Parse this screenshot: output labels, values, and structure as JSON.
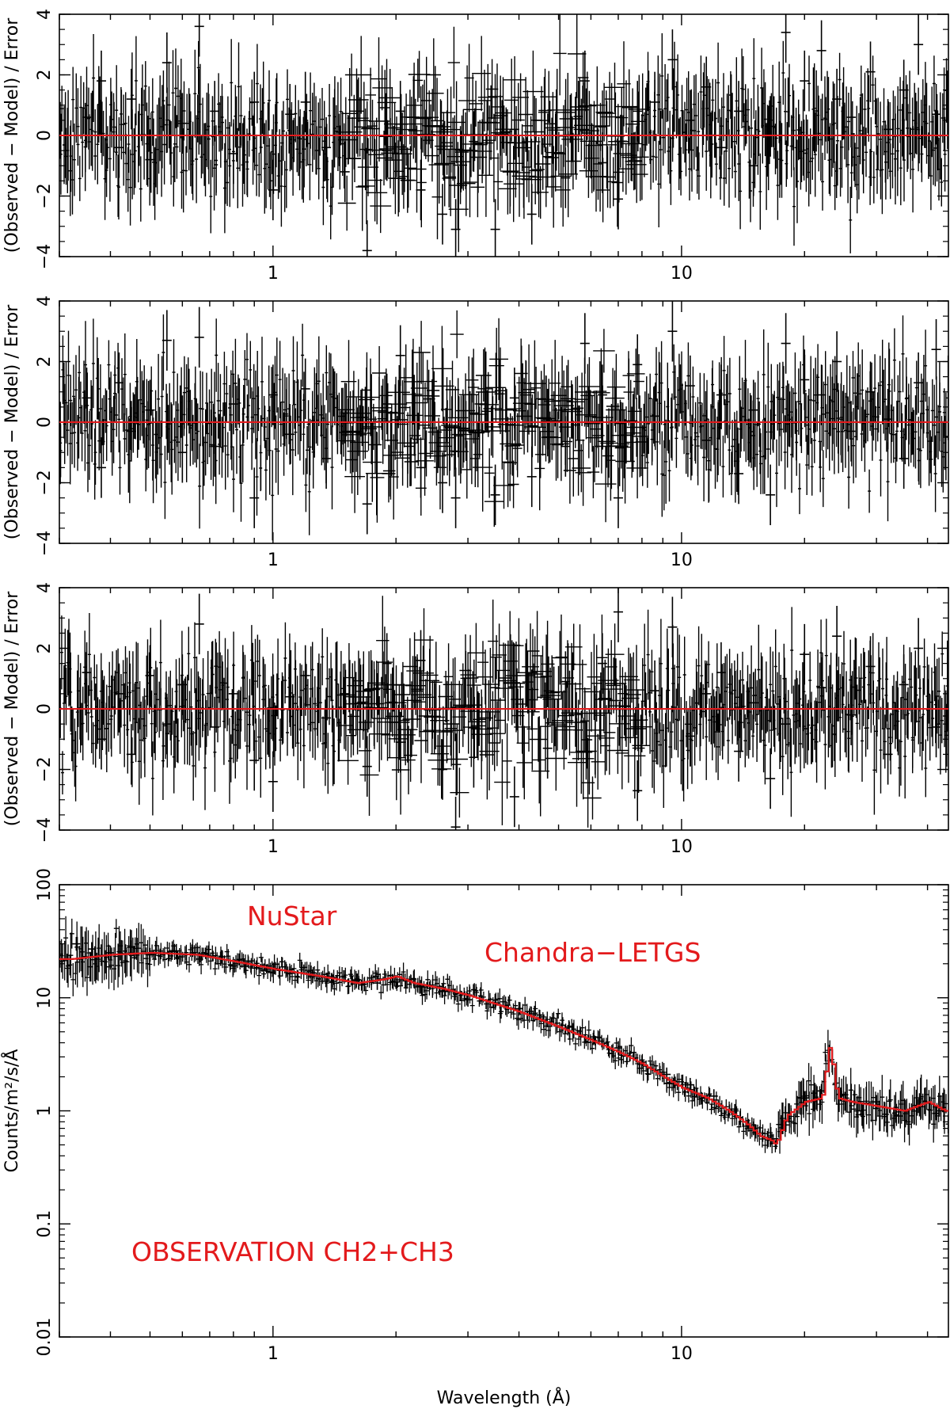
{
  "chart_data": [
    {
      "panel": "residuals_1",
      "type": "scatter",
      "ylabel": "(Observed − Model) / Error",
      "xscale": "log",
      "xlim": [
        0.3,
        45
      ],
      "ylim": [
        -4,
        4
      ],
      "yticks": [
        -4,
        -2,
        0,
        2,
        4
      ],
      "ytick_labels": [
        "−4",
        "−2",
        "0",
        "2",
        "4"
      ],
      "xticks": [
        1,
        10
      ],
      "xtick_labels": [
        "1",
        "10"
      ],
      "zero_line_color": "#e31a1c",
      "points": [
        {
          "x": 0.35,
          "y": 0.6
        },
        {
          "x": 0.38,
          "y": 1.8
        },
        {
          "x": 0.42,
          "y": -0.4
        },
        {
          "x": 0.45,
          "y": 1.2
        },
        {
          "x": 0.5,
          "y": -0.8
        },
        {
          "x": 0.55,
          "y": 2.4
        },
        {
          "x": 0.6,
          "y": 0.4
        },
        {
          "x": 0.66,
          "y": 3.6
        },
        {
          "x": 0.72,
          "y": 0.8
        },
        {
          "x": 0.8,
          "y": -0.6
        },
        {
          "x": 0.9,
          "y": 1.1
        },
        {
          "x": 1.0,
          "y": -1.8
        },
        {
          "x": 1.1,
          "y": 0.7
        },
        {
          "x": 1.2,
          "y": 1.1
        },
        {
          "x": 1.35,
          "y": -0.4
        },
        {
          "x": 1.5,
          "y": -1.2
        },
        {
          "x": 1.7,
          "y": -3.8
        },
        {
          "x": 1.9,
          "y": -0.5
        },
        {
          "x": 2.05,
          "y": 0.8
        },
        {
          "x": 2.3,
          "y": -1.8
        },
        {
          "x": 2.6,
          "y": -2.6
        },
        {
          "x": 2.8,
          "y": -3.1
        },
        {
          "x": 3.1,
          "y": -0.2
        },
        {
          "x": 3.5,
          "y": -3.1
        },
        {
          "x": 3.9,
          "y": 0.2
        },
        {
          "x": 4.3,
          "y": -2.6
        },
        {
          "x": 4.7,
          "y": -0.7
        },
        {
          "x": 5.2,
          "y": -1.4
        },
        {
          "x": 5.8,
          "y": 1.8
        },
        {
          "x": 6.4,
          "y": -0.9
        },
        {
          "x": 7.0,
          "y": -2.1
        },
        {
          "x": 7.8,
          "y": 0.8
        },
        {
          "x": 8.6,
          "y": 1.1
        },
        {
          "x": 9.5,
          "y": 2.5
        },
        {
          "x": 10.5,
          "y": 0.5
        },
        {
          "x": 11.5,
          "y": 1.6
        },
        {
          "x": 12.5,
          "y": -0.4
        },
        {
          "x": 13.8,
          "y": 0.8
        },
        {
          "x": 15.0,
          "y": -1.0
        },
        {
          "x": 16.5,
          "y": 0.3
        },
        {
          "x": 18.0,
          "y": 3.4
        },
        {
          "x": 20.0,
          "y": 1.8
        },
        {
          "x": 22.0,
          "y": 2.8
        },
        {
          "x": 24.0,
          "y": 1.2
        },
        {
          "x": 26.0,
          "y": 0.6
        },
        {
          "x": 29.0,
          "y": 2.1
        },
        {
          "x": 32.0,
          "y": 0.2
        },
        {
          "x": 35.0,
          "y": 1.5
        },
        {
          "x": 38.0,
          "y": 3.0
        },
        {
          "x": 42.0,
          "y": 0.7
        }
      ]
    },
    {
      "panel": "residuals_2",
      "type": "scatter",
      "ylabel": "(Observed − Model) / Error",
      "xscale": "log",
      "xlim": [
        0.3,
        45
      ],
      "ylim": [
        -4,
        4
      ],
      "yticks": [
        -4,
        -2,
        0,
        2,
        4
      ],
      "ytick_labels": [
        "−4",
        "−2",
        "0",
        "2",
        "4"
      ],
      "xticks": [
        1,
        10
      ],
      "xtick_labels": [
        "1",
        "10"
      ],
      "zero_line_color": "#e31a1c",
      "points": [
        {
          "x": 0.35,
          "y": 0.8
        },
        {
          "x": 0.38,
          "y": -1.5
        },
        {
          "x": 0.42,
          "y": 1.3
        },
        {
          "x": 0.45,
          "y": -0.3
        },
        {
          "x": 0.5,
          "y": 0.4
        },
        {
          "x": 0.55,
          "y": 2.7
        },
        {
          "x": 0.6,
          "y": -1.0
        },
        {
          "x": 0.66,
          "y": 2.8
        },
        {
          "x": 0.72,
          "y": -0.8
        },
        {
          "x": 0.8,
          "y": 0.6
        },
        {
          "x": 0.9,
          "y": -2.5
        },
        {
          "x": 1.0,
          "y": 0.9
        },
        {
          "x": 1.1,
          "y": -0.4
        },
        {
          "x": 1.2,
          "y": 1.1
        },
        {
          "x": 1.35,
          "y": -1.2
        },
        {
          "x": 1.5,
          "y": 0.3
        },
        {
          "x": 1.7,
          "y": -2.7
        },
        {
          "x": 1.9,
          "y": 0.6
        },
        {
          "x": 2.05,
          "y": 2.2
        },
        {
          "x": 2.3,
          "y": -1.5
        },
        {
          "x": 2.6,
          "y": -2.0
        },
        {
          "x": 2.8,
          "y": -2.5
        },
        {
          "x": 3.1,
          "y": 0.3
        },
        {
          "x": 3.5,
          "y": -2.4
        },
        {
          "x": 3.9,
          "y": 0.8
        },
        {
          "x": 4.3,
          "y": -1.8
        },
        {
          "x": 4.7,
          "y": 0.1
        },
        {
          "x": 5.2,
          "y": -0.8
        },
        {
          "x": 5.8,
          "y": 2.6
        },
        {
          "x": 6.4,
          "y": 0.9
        },
        {
          "x": 7.0,
          "y": -2.5
        },
        {
          "x": 7.8,
          "y": 1.9
        },
        {
          "x": 8.6,
          "y": 0.2
        },
        {
          "x": 9.5,
          "y": 3.0
        },
        {
          "x": 10.5,
          "y": 1.2
        },
        {
          "x": 11.5,
          "y": -0.6
        },
        {
          "x": 12.5,
          "y": 0.9
        },
        {
          "x": 13.8,
          "y": -1.7
        },
        {
          "x": 15.0,
          "y": 0.4
        },
        {
          "x": 16.5,
          "y": -2.4
        },
        {
          "x": 18.0,
          "y": 2.6
        },
        {
          "x": 20.0,
          "y": 1.4
        },
        {
          "x": 22.0,
          "y": 0.9
        },
        {
          "x": 24.0,
          "y": 2.0
        },
        {
          "x": 26.0,
          "y": -0.3
        },
        {
          "x": 29.0,
          "y": 1.0
        },
        {
          "x": 32.0,
          "y": 0.1
        },
        {
          "x": 35.0,
          "y": -1.2
        },
        {
          "x": 38.0,
          "y": 1.3
        },
        {
          "x": 42.0,
          "y": 2.4
        }
      ]
    },
    {
      "panel": "residuals_3",
      "type": "scatter",
      "ylabel": "(Observed − Model) / Error",
      "xscale": "log",
      "xlim": [
        0.3,
        45
      ],
      "ylim": [
        -4,
        4
      ],
      "yticks": [
        -4,
        -2,
        0,
        2,
        4
      ],
      "ytick_labels": [
        "−4",
        "−2",
        "0",
        "2",
        "4"
      ],
      "xticks": [
        1,
        10
      ],
      "xtick_labels": [
        "1",
        "10"
      ],
      "zero_line_color": "#e31a1c",
      "points": [
        {
          "x": 0.35,
          "y": 1.2
        },
        {
          "x": 0.38,
          "y": -1.0
        },
        {
          "x": 0.42,
          "y": 0.5
        },
        {
          "x": 0.45,
          "y": -1.5
        },
        {
          "x": 0.5,
          "y": 1.1
        },
        {
          "x": 0.55,
          "y": -0.5
        },
        {
          "x": 0.6,
          "y": 0.8
        },
        {
          "x": 0.66,
          "y": 2.8
        },
        {
          "x": 0.72,
          "y": -0.6
        },
        {
          "x": 0.8,
          "y": 0.5
        },
        {
          "x": 0.9,
          "y": -1.7
        },
        {
          "x": 1.0,
          "y": -2.4
        },
        {
          "x": 1.1,
          "y": 0.4
        },
        {
          "x": 1.2,
          "y": 1.1
        },
        {
          "x": 1.35,
          "y": -0.3
        },
        {
          "x": 1.5,
          "y": 0.5
        },
        {
          "x": 1.7,
          "y": -1.9
        },
        {
          "x": 1.9,
          "y": 1.5
        },
        {
          "x": 2.05,
          "y": -1.1
        },
        {
          "x": 2.3,
          "y": 1.6
        },
        {
          "x": 2.6,
          "y": -2.0
        },
        {
          "x": 2.8,
          "y": -3.9
        },
        {
          "x": 3.1,
          "y": -1.6
        },
        {
          "x": 3.5,
          "y": 0.7
        },
        {
          "x": 3.9,
          "y": -2.9
        },
        {
          "x": 4.3,
          "y": 0.3
        },
        {
          "x": 4.7,
          "y": -1.3
        },
        {
          "x": 5.2,
          "y": 0.9
        },
        {
          "x": 5.8,
          "y": -0.4
        },
        {
          "x": 6.4,
          "y": 1.5
        },
        {
          "x": 7.0,
          "y": 3.2
        },
        {
          "x": 7.8,
          "y": -2.7
        },
        {
          "x": 8.6,
          "y": 0.6
        },
        {
          "x": 9.5,
          "y": 2.7
        },
        {
          "x": 10.5,
          "y": -0.9
        },
        {
          "x": 11.5,
          "y": 0.5
        },
        {
          "x": 12.5,
          "y": 1.2
        },
        {
          "x": 13.8,
          "y": -1.4
        },
        {
          "x": 15.0,
          "y": 0.2
        },
        {
          "x": 16.5,
          "y": -2.3
        },
        {
          "x": 18.0,
          "y": -0.5
        },
        {
          "x": 20.0,
          "y": 1.8
        },
        {
          "x": 22.0,
          "y": 0.7
        },
        {
          "x": 24.0,
          "y": 2.4
        },
        {
          "x": 26.0,
          "y": -0.2
        },
        {
          "x": 29.0,
          "y": 1.4
        },
        {
          "x": 32.0,
          "y": -1.5
        },
        {
          "x": 35.0,
          "y": 0.8
        },
        {
          "x": 38.0,
          "y": 2.0
        },
        {
          "x": 42.0,
          "y": -0.6
        }
      ]
    },
    {
      "panel": "spectrum",
      "type": "line",
      "xlabel": "Wavelength (Å)",
      "ylabel": "Counts/m²/s/Å",
      "xscale": "log",
      "yscale": "log",
      "xlim": [
        0.3,
        45
      ],
      "ylim": [
        0.01,
        100
      ],
      "yticks": [
        0.01,
        0.1,
        1,
        10,
        100
      ],
      "ytick_labels": [
        "0.01",
        "0.1",
        "1",
        "10",
        "100"
      ],
      "xticks": [
        1,
        10
      ],
      "xtick_labels": [
        "1",
        "10"
      ],
      "annotations": [
        "NuStar",
        "Chandra−LETGS",
        "OBSERVATION CH2+CH3"
      ],
      "annotation_color": "#e31a1c",
      "series": [
        {
          "color": "#e31a1c",
          "x": [
            0.32,
            0.4,
            0.5,
            0.65,
            0.8,
            1.0,
            1.3,
            1.6,
            1.85,
            2.0,
            2.2,
            2.6,
            3.0,
            4.0,
            5.0,
            6.0,
            7.0,
            8.0,
            9.0,
            10.0,
            11.5,
            13.0,
            14.5,
            15.5,
            16.5,
            17.0,
            18.0,
            20.0,
            22.0,
            23.0,
            24.0,
            26.0,
            30.0,
            35.0,
            40.0,
            44.0
          ],
          "y": [
            22,
            24,
            25,
            24,
            21,
            18,
            15.5,
            13.5,
            14.5,
            15.5,
            13.5,
            12,
            10.5,
            7.5,
            5.5,
            4.2,
            3.3,
            2.6,
            2.0,
            1.6,
            1.3,
            1.0,
            0.75,
            0.6,
            0.55,
            0.5,
            0.9,
            1.2,
            1.3,
            3.9,
            1.3,
            1.2,
            1.1,
            1.0,
            1.2,
            1.0
          ]
        },
        {
          "x": [
            0.33,
            0.36,
            0.4,
            0.45,
            0.5,
            0.58,
            0.66,
            0.75,
            0.85,
            0.95,
            1.1,
            1.25,
            1.4,
            1.6,
            1.8,
            2.0,
            2.3,
            2.6,
            3.0,
            3.5,
            4.0,
            4.6,
            5.3,
            6.1,
            7.0,
            8.0,
            9.2,
            10.5,
            12.0,
            13.5,
            15.0,
            16.5,
            18.0,
            20.0,
            22.0,
            24.5,
            27.0,
            30.0,
            34.0,
            38.0,
            42.0
          ],
          "y": [
            30,
            27,
            25,
            28,
            24,
            26,
            22,
            23,
            19,
            17.5,
            16.5,
            15.5,
            14,
            14.2,
            13.5,
            13.8,
            12.5,
            11.5,
            9.6,
            9.0,
            8.0,
            6.2,
            5.5,
            4.5,
            3.6,
            2.7,
            2.1,
            1.7,
            1.35,
            1.0,
            0.7,
            0.55,
            0.75,
            1.3,
            1.5,
            1.4,
            1.0,
            1.2,
            0.9,
            1.1,
            0.95
          ]
        }
      ]
    }
  ]
}
